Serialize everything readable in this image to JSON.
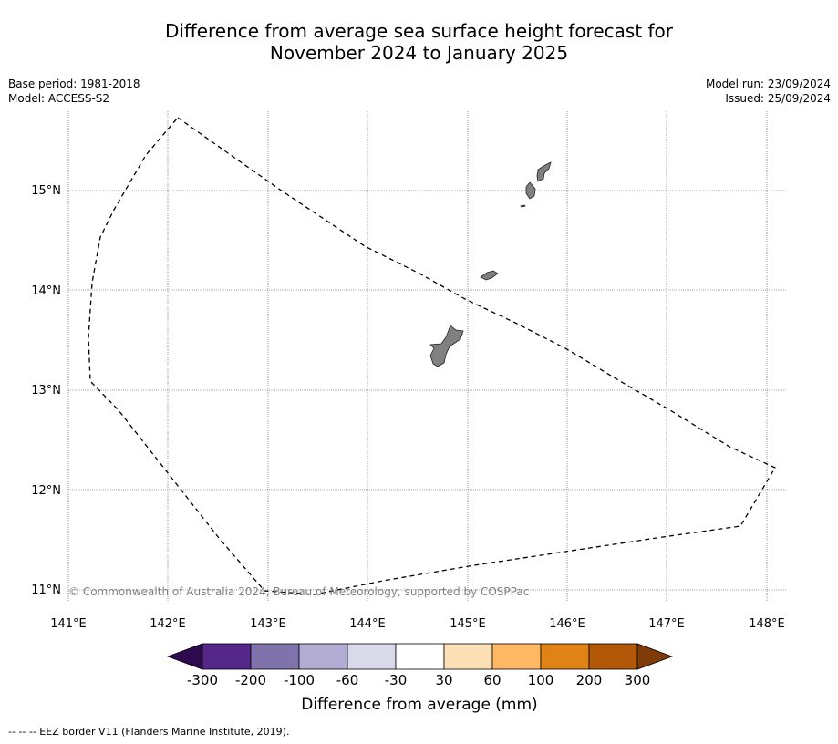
{
  "title_line1": "Difference from average sea surface height forecast for",
  "title_line2": "November 2024 to January 2025",
  "meta_left": [
    "Base period: 1981-2018",
    "Model: ACCESS-S2"
  ],
  "meta_right": [
    "Model run: 23/09/2024",
    "Issued: 25/09/2024"
  ],
  "copyright": "© Commonwealth of Australia 2024, Bureau of Meteorology, supported by COSPPac",
  "lon_labels": [
    "141°E",
    "142°E",
    "143°E",
    "144°E",
    "145°E",
    "146°E",
    "147°E",
    "148°E"
  ],
  "lat_labels": [
    "11°N",
    "12°N",
    "13°N",
    "14°N",
    "15°N"
  ],
  "colorbar": {
    "label": "Difference from average (mm)",
    "ticks": [
      "-300",
      "-200",
      "-100",
      "-60",
      "-30",
      "30",
      "60",
      "100",
      "200",
      "300"
    ],
    "under_color": "#2d0a4e",
    "colors": [
      "#542788",
      "#8073ac",
      "#b2abd2",
      "#d8daeb",
      "#ffffff",
      "#fee0b6",
      "#fdb863",
      "#e08214",
      "#b35806"
    ],
    "over_color": "#7f3b08"
  },
  "footnote": "-- -- -- EEZ border V11 (Flanders Marine Institute, 2019).",
  "land_color": "#808080"
}
